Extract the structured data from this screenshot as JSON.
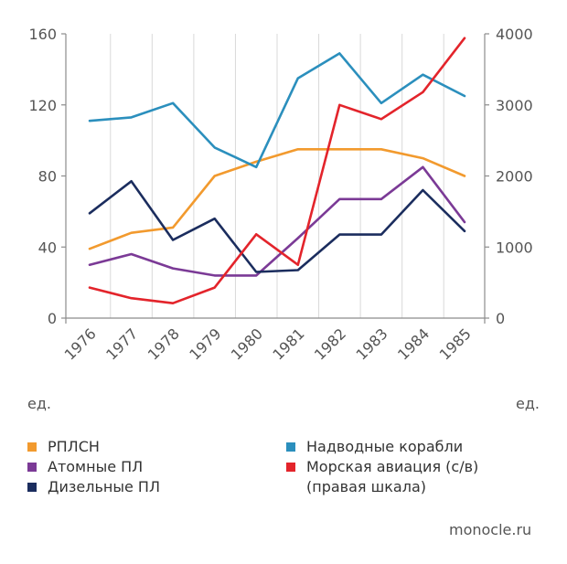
{
  "chart_data": {
    "type": "line",
    "categories": [
      "1976",
      "1977",
      "1978",
      "1979",
      "1980",
      "1981",
      "1982",
      "1983",
      "1984",
      "1985"
    ],
    "left_axis": {
      "label": "ед.",
      "ticks": [
        "0",
        "40",
        "80",
        "120",
        "160"
      ],
      "range": [
        0,
        160
      ]
    },
    "right_axis": {
      "label": "ед.",
      "ticks": [
        "0",
        "1000",
        "2000",
        "3000",
        "4000"
      ],
      "range": [
        0,
        4000
      ]
    },
    "grid": "vertical",
    "legend_position": "bottom",
    "series": [
      {
        "name": "РПЛСН",
        "color": "#f29a2e",
        "axis": "left",
        "values": [
          39,
          48,
          51,
          80,
          88,
          95,
          95,
          95,
          90,
          80
        ]
      },
      {
        "name": "Атомные ПЛ",
        "color": "#7b3a96",
        "axis": "left",
        "values": [
          30,
          36,
          28,
          24,
          24,
          45,
          67,
          67,
          85,
          54
        ]
      },
      {
        "name": "Дизельные ПЛ",
        "color": "#1b2d5e",
        "axis": "left",
        "values": [
          59,
          77,
          44,
          56,
          26,
          27,
          47,
          47,
          72,
          49
        ]
      },
      {
        "name": "Надводные корабли",
        "color": "#2b8fbd",
        "axis": "left",
        "values": [
          111,
          113,
          121,
          96,
          85,
          135,
          149,
          121,
          137,
          125
        ]
      },
      {
        "name": "Морская авиация (с/в)\n(правая шкала)",
        "color": "#e3242b",
        "axis": "right",
        "values": [
          430,
          280,
          210,
          430,
          1180,
          750,
          3000,
          2800,
          3180,
          3940
        ]
      }
    ]
  },
  "source": "monocle.ru"
}
